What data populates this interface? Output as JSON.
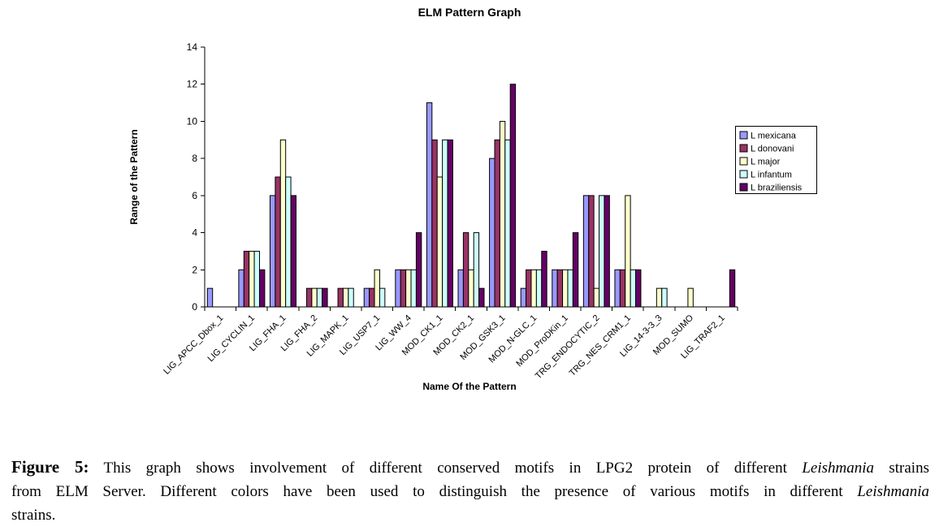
{
  "chart_data": {
    "type": "bar",
    "title": "ELM Pattern Graph",
    "xlabel": "Name Of the Pattern",
    "ylabel": "Range of the Pattern",
    "ylim": [
      0,
      14
    ],
    "ytick_step": 2,
    "grid": false,
    "legend_position": "right",
    "background": "#ffffff",
    "axis_color": "#000000",
    "categories": [
      "LIG_APCC_Dbox_1",
      "LIG_CYCLIN_1",
      "LIG_FHA_1",
      "LIG_FHA_2",
      "LIG_MAPK_1",
      "LIG_USP7_1",
      "LIG_WW_4",
      "MOD_CK1_1",
      "MOD_CK2_1",
      "MOD_GSK3_1",
      "MOD_N-GLC_1",
      "MOD_ProDKin_1",
      "TRG_ENDOCYTIC_2",
      "TRG_NES_CRM1_1",
      "LIG_14-3-3_3",
      "MOD_SUMO",
      "LIG_TRAF2_1"
    ],
    "series": [
      {
        "name": "L mexicana",
        "color": "#9999FF",
        "values": [
          1,
          2,
          6,
          0,
          0,
          1,
          2,
          11,
          2,
          8,
          1,
          2,
          6,
          2,
          0,
          0,
          0
        ]
      },
      {
        "name": "L donovani",
        "color": "#993366",
        "values": [
          0,
          3,
          7,
          1,
          1,
          1,
          2,
          9,
          4,
          9,
          2,
          2,
          6,
          2,
          0,
          0,
          0
        ]
      },
      {
        "name": "L major",
        "color": "#FFFFCC",
        "values": [
          0,
          3,
          9,
          1,
          1,
          2,
          2,
          7,
          2,
          10,
          2,
          2,
          1,
          6,
          1,
          1,
          0
        ]
      },
      {
        "name": "L infantum",
        "color": "#CCFFFF",
        "values": [
          0,
          3,
          7,
          1,
          1,
          1,
          2,
          9,
          4,
          9,
          2,
          2,
          6,
          2,
          1,
          0,
          0
        ]
      },
      {
        "name": "L braziliensis",
        "color": "#660066",
        "values": [
          0,
          2,
          6,
          1,
          0,
          0,
          4,
          9,
          1,
          12,
          3,
          4,
          6,
          2,
          0,
          0,
          2
        ]
      }
    ]
  },
  "figure": {
    "caption": {
      "lines": [
        [
          {
            "t": "Figure 5:",
            "b": true
          },
          {
            "t": " This graph shows involvement of different conserved motifs in LPG2 protein of different "
          },
          {
            "t": "Leishmania",
            "i": true
          },
          {
            "t": " strains"
          }
        ],
        [
          {
            "t": "from ELM Server. Different colors have been used to distinguish the presence of various motifs in different "
          },
          {
            "t": "Leishmania",
            "i": true
          }
        ],
        [
          {
            "t": "strains."
          }
        ]
      ]
    }
  }
}
